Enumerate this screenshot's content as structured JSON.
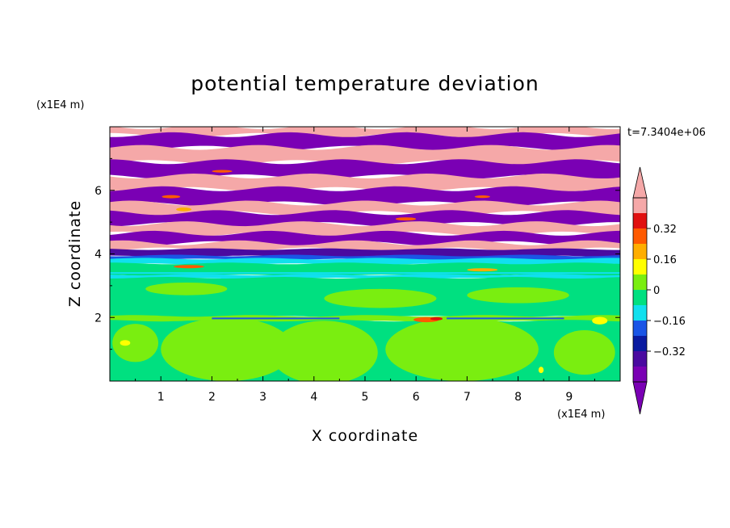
{
  "chart_data": {
    "type": "heatmap",
    "title": "potential temperature deviation",
    "xlabel": "X coordinate",
    "ylabel": "Z coordinate",
    "x_unit": "(x1E4 m)",
    "y_unit": "(x1E4 m)",
    "time_label": "t=7.3404e+06",
    "xlim": [
      0,
      10
    ],
    "ylim": [
      0,
      8
    ],
    "x_ticks": [
      "1",
      "2",
      "3",
      "4",
      "5",
      "6",
      "7",
      "8",
      "9"
    ],
    "y_ticks": [
      "2",
      "4",
      "6"
    ],
    "colorbar": {
      "levels": [
        -0.48,
        -0.4,
        -0.32,
        -0.24,
        -0.16,
        -0.08,
        0,
        0.08,
        0.16,
        0.24,
        0.32,
        0.4,
        0.48
      ],
      "colors": [
        "#7a00b4",
        "#4a0aa0",
        "#0a1aa0",
        "#1a55e6",
        "#10e0ee",
        "#00e080",
        "#7aee10",
        "#ffff00",
        "#ffae00",
        "#ff5a00",
        "#e01010",
        "#f5a8a8"
      ],
      "under_color": "#7a00b4",
      "over_color": "#f5a8a8",
      "tick_labels": [
        "0.32",
        "0.16",
        "0",
        "-0.16",
        "-0.32"
      ],
      "tick_values": [
        0.32,
        0.16,
        0,
        -0.16,
        -0.32
      ]
    },
    "bands": [
      {
        "z0": 7.75,
        "z1": 8.0,
        "value": 0.44
      },
      {
        "z0": 7.35,
        "z1": 7.75,
        "value": -0.44
      },
      {
        "z0": 6.9,
        "z1": 7.35,
        "value": 0.44
      },
      {
        "z0": 6.45,
        "z1": 6.9,
        "value": -0.44
      },
      {
        "z0": 6.05,
        "z1": 6.45,
        "value": 0.44
      },
      {
        "z0": 5.6,
        "z1": 6.05,
        "value": -0.44
      },
      {
        "z0": 5.3,
        "z1": 5.6,
        "value": 0.44
      },
      {
        "z0": 4.95,
        "z1": 5.3,
        "value": -0.44
      },
      {
        "z0": 4.65,
        "z1": 4.95,
        "value": 0.44
      },
      {
        "z0": 4.35,
        "z1": 4.65,
        "value": -0.44
      },
      {
        "z0": 4.15,
        "z1": 4.35,
        "value": 0.44
      },
      {
        "z0": 3.95,
        "z1": 4.15,
        "value": -0.36
      },
      {
        "z0": 3.85,
        "z1": 3.95,
        "value": -0.2
      },
      {
        "z0": 3.7,
        "z1": 3.85,
        "value": -0.12
      },
      {
        "z0": 3.35,
        "z1": 3.7,
        "value": -0.04
      },
      {
        "z0": 3.25,
        "z1": 3.35,
        "value": -0.12
      },
      {
        "z0": 2.05,
        "z1": 3.25,
        "value": -0.04
      },
      {
        "z0": 1.9,
        "z1": 2.05,
        "value": 0.04
      },
      {
        "z0": 0.0,
        "z1": 1.9,
        "value": -0.04
      }
    ],
    "features": [
      {
        "type": "ellipse",
        "cx": 2.3,
        "cz": 1.0,
        "rx": 1.3,
        "rz": 1.0,
        "value": 0.04
      },
      {
        "type": "ellipse",
        "cx": 4.2,
        "cz": 0.9,
        "rx": 1.05,
        "rz": 1.0,
        "value": 0.04
      },
      {
        "type": "ellipse",
        "cx": 6.9,
        "cz": 1.0,
        "rx": 1.5,
        "rz": 1.0,
        "value": 0.04
      },
      {
        "type": "ellipse",
        "cx": 0.5,
        "cz": 1.2,
        "rx": 0.45,
        "rz": 0.6,
        "value": 0.04
      },
      {
        "type": "ellipse",
        "cx": 9.3,
        "cz": 0.9,
        "rx": 0.6,
        "rz": 0.7,
        "value": 0.04
      },
      {
        "type": "ellipse",
        "cx": 5.3,
        "cz": 2.6,
        "rx": 1.1,
        "rz": 0.3,
        "value": 0.04
      },
      {
        "type": "ellipse",
        "cx": 8.0,
        "cz": 2.7,
        "rx": 1.0,
        "rz": 0.25,
        "value": 0.04
      },
      {
        "type": "ellipse",
        "cx": 1.5,
        "cz": 2.9,
        "rx": 0.8,
        "rz": 0.2,
        "value": 0.04
      },
      {
        "type": "hline",
        "x0": 2.0,
        "x1": 4.5,
        "z": 1.97,
        "value": -0.24
      },
      {
        "type": "hline",
        "x0": 6.6,
        "x1": 8.9,
        "z": 1.97,
        "value": -0.24
      },
      {
        "type": "hline",
        "x0": 0.0,
        "x1": 10.0,
        "z": 3.4,
        "value": -0.12
      },
      {
        "type": "ellipse",
        "cx": 6.2,
        "cz": 1.93,
        "rx": 0.25,
        "rz": 0.08,
        "value": 0.28
      },
      {
        "type": "ellipse",
        "cx": 6.4,
        "cz": 1.96,
        "rx": 0.12,
        "rz": 0.05,
        "value": 0.36
      },
      {
        "type": "ellipse",
        "cx": 0.3,
        "cz": 1.2,
        "rx": 0.1,
        "rz": 0.09,
        "value": 0.12
      },
      {
        "type": "ellipse",
        "cx": 9.6,
        "cz": 1.9,
        "rx": 0.15,
        "rz": 0.12,
        "value": 0.12
      },
      {
        "type": "ellipse",
        "cx": 8.45,
        "cz": 0.35,
        "rx": 0.05,
        "rz": 0.1,
        "value": 0.12
      },
      {
        "type": "ellipse",
        "cx": 1.2,
        "cz": 5.8,
        "rx": 0.18,
        "rz": 0.05,
        "value": 0.28
      },
      {
        "type": "ellipse",
        "cx": 1.45,
        "cz": 5.4,
        "rx": 0.15,
        "rz": 0.06,
        "value": 0.2
      },
      {
        "type": "ellipse",
        "cx": 1.55,
        "cz": 3.6,
        "rx": 0.3,
        "rz": 0.05,
        "value": 0.28
      },
      {
        "type": "ellipse",
        "cx": 5.8,
        "cz": 5.1,
        "rx": 0.2,
        "rz": 0.05,
        "value": 0.28
      },
      {
        "type": "ellipse",
        "cx": 7.3,
        "cz": 3.5,
        "rx": 0.3,
        "rz": 0.05,
        "value": 0.2
      },
      {
        "type": "ellipse",
        "cx": 2.2,
        "cz": 6.6,
        "rx": 0.2,
        "rz": 0.04,
        "value": 0.28
      },
      {
        "type": "ellipse",
        "cx": 7.3,
        "cz": 5.8,
        "rx": 0.15,
        "rz": 0.04,
        "value": 0.28
      }
    ]
  }
}
